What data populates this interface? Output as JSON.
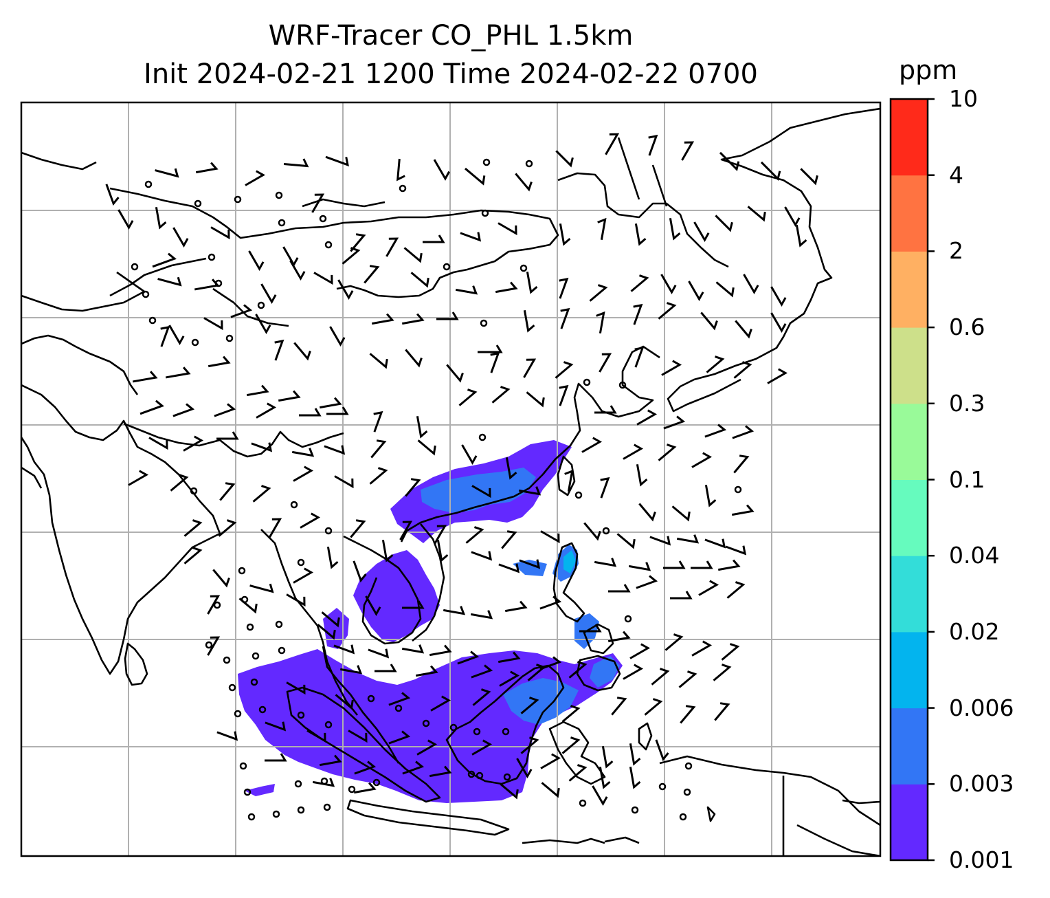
{
  "title": {
    "line1": "WRF-Tracer CO_PHL 1.5km",
    "line2": "Init 2024-02-21 1200 Time 2024-02-22 0700"
  },
  "colorbar": {
    "unit": "ppm",
    "levels": [
      "0.001",
      "0.003",
      "0.006",
      "0.02",
      "0.04",
      "0.1",
      "0.3",
      "0.6",
      "2",
      "4",
      "10"
    ],
    "colors": [
      "#6329ff",
      "#3276f5",
      "#03b4ee",
      "#33ddd9",
      "#66fbbe",
      "#99fa99",
      "#cde08a",
      "#ffb062",
      "#ff7341",
      "#ff2a1a"
    ]
  },
  "map": {
    "gridlines": true,
    "coastline_color": "#000000",
    "plume_color_low": "#6329ff",
    "plume_color_mid": "#3276f5",
    "plume_color_high": "#03b4ee",
    "wind_barbs": true
  }
}
